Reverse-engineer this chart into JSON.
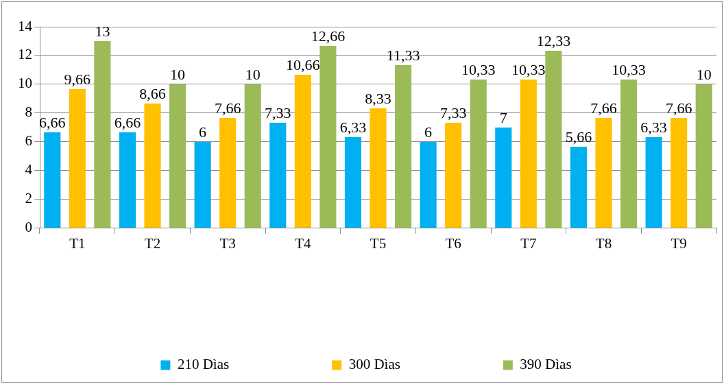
{
  "chart_data": {
    "type": "bar",
    "categories": [
      "T1",
      "T2",
      "T3",
      "T4",
      "T5",
      "T6",
      "T7",
      "T8",
      "T9"
    ],
    "series": [
      {
        "name": "210 Dìas",
        "color": "#00b0f0",
        "values": [
          6.66,
          6.66,
          6,
          7.33,
          6.33,
          6,
          7,
          5.66,
          6.33
        ],
        "value_labels": [
          "6,66",
          "6,66",
          "6",
          "7,33",
          "6,33",
          "6",
          "7",
          "5,66",
          "6,33"
        ]
      },
      {
        "name": "300 Dìas",
        "color": "#ffc000",
        "values": [
          9.66,
          8.66,
          7.66,
          10.66,
          8.33,
          7.33,
          10.33,
          7.66,
          7.66
        ],
        "value_labels": [
          "9,66",
          "8,66",
          "7,66",
          "10,66",
          "8,33",
          "7,33",
          "10,33",
          "7,66",
          "7,66"
        ]
      },
      {
        "name": "390 Dìas",
        "color": "#9bbb59",
        "values": [
          13,
          10,
          10,
          12.66,
          11.33,
          10.33,
          12.33,
          10.33,
          10
        ],
        "value_labels": [
          "13",
          "10",
          "10",
          "12,66",
          "11,33",
          "10,33",
          "12,33",
          "10,33",
          "10"
        ]
      }
    ],
    "ylim": [
      0,
      14
    ],
    "yticks": [
      0,
      2,
      4,
      6,
      8,
      10,
      12,
      14
    ],
    "grid": "y",
    "legend": "bottom"
  }
}
